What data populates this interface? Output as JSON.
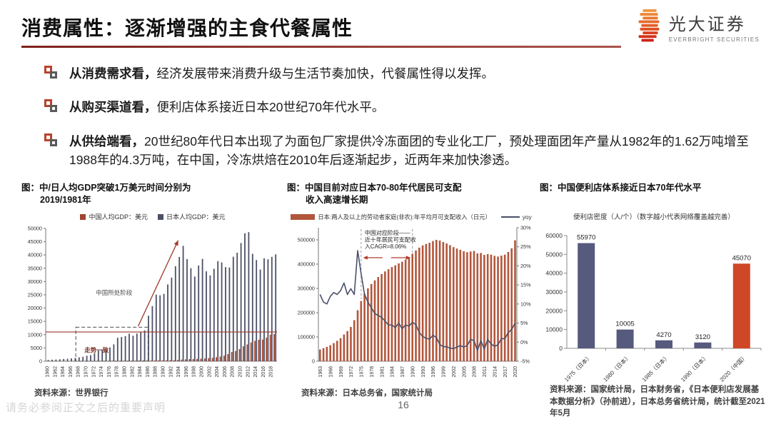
{
  "header": {
    "title": "消费属性：逐渐增强的主食代餐属性",
    "brand_cn": "光大证券",
    "brand_en": "EVERBRIGHT SECURITIES"
  },
  "bullets": [
    {
      "lead": "从消费需求看，",
      "text": "经济发展带来消费升级与生活节奏加快，代餐属性得以发挥。"
    },
    {
      "lead": "从购买渠道看，",
      "text": "便利店体系接近日本20世纪70年代水平。"
    },
    {
      "lead": "从供给端看，",
      "text": "20世纪80年代日本出现了为面包厂家提供冷冻面团的专业化工厂，预处理面团年产量从1982年的1.62万吨增至1988年的4.3万吨，在中国，冷冻烘焙在2010年后逐渐起步，近两年来加快渗透。"
    }
  ],
  "sources": {
    "chart1": "资料来源：世界银行",
    "chart2": "资料来源：日本总务省，国家统计局",
    "chart3": "资料来源：国家统计局，日本财务省，《日本便利店发展基本数据分析》（孙前进），日本总务省统计局，统计截至2021年5月"
  },
  "footer": {
    "page_number": "16",
    "disclaimer": "请务必参阅正文之后的重要声明"
  },
  "chart_data": [
    {
      "type": "bar",
      "title": "图：中/日人均GDP突破1万美元时间分别为\n2019/1981年",
      "x_first_year": 1960,
      "x_tick_labels": [
        "1960",
        "1962",
        "1964",
        "1966",
        "1968",
        "1970",
        "1972",
        "1974",
        "1976",
        "1978",
        "1980",
        "1982",
        "1984",
        "1986",
        "1988",
        "1990",
        "1992",
        "1994",
        "1996",
        "1998",
        "2000",
        "2002",
        "2004",
        "2006",
        "2008",
        "2010",
        "2012",
        "2014",
        "2016",
        "2018"
      ],
      "ylim": [
        0,
        50000
      ],
      "ytick_step": 5000,
      "legend": [
        {
          "label": "中国人均GDP：美元",
          "color": "#a1442f"
        },
        {
          "label": "日本人均GDP：美元",
          "color": "#4c5065"
        }
      ],
      "series": [
        {
          "name": "中国人均GDP：美元",
          "color": "#a1442f",
          "values": [
            90,
            76,
            71,
            74,
            85,
            98,
            104,
            97,
            91,
            100,
            113,
            119,
            132,
            157,
            160,
            178,
            165,
            185,
            156,
            184,
            195,
            197,
            203,
            225,
            250,
            294,
            282,
            252,
            284,
            311,
            318,
            333,
            366,
            377,
            473,
            610,
            709,
            782,
            829,
            873,
            959,
            1053,
            1149,
            1289,
            1509,
            1753,
            2099,
            2694,
            3468,
            3832,
            4550,
            5618,
            6317,
            7051,
            7679,
            8067,
            8148,
            8879,
            9977,
            10217
          ]
        },
        {
          "name": "日本人均GDP：美元",
          "color": "#4c5065",
          "values": [
            479,
            564,
            634,
            718,
            836,
            920,
            1058,
            1229,
            1451,
            1669,
            2056,
            2272,
            2967,
            3998,
            4353,
            4659,
            5197,
            6335,
            8821,
            9105,
            9465,
            10361,
            9578,
            10425,
            10984,
            11585,
            17112,
            20745,
            25059,
            24813,
            25371,
            28915,
            31465,
            35766,
            39269,
            43440,
            38437,
            35022,
            31902,
            36027,
            38532,
            33846,
            32289,
            34808,
            37688,
            37217,
            35433,
            35275,
            39339,
            40855,
            44508,
            48168,
            48603,
            40454,
            38109,
            34524,
            38762,
            38387,
            39290,
            40247
          ]
        }
      ],
      "reference_line": {
        "value": 11000,
        "color": "#9e372b"
      },
      "annotations": {
        "box_label": "走势一致",
        "box_year_range": [
          1968,
          1986
        ],
        "box_value_top": 12800,
        "arrow_label": "中国所处阶段",
        "arrow_from": {
          "year": 1984,
          "value": 13200
        },
        "arrow_to": {
          "year": 1994,
          "value": 45500
        }
      }
    },
    {
      "type": "bar+line",
      "title": "图：中国目前对应日本70-80年代居民可支配\n收入高速增长期",
      "x_first_year": 1963,
      "x_tick_labels": [
        "1963",
        "1966",
        "1969",
        "1972",
        "1975",
        "1978",
        "1981",
        "1984",
        "1987",
        "1990",
        "1993",
        "1996",
        "1999",
        "2002",
        "2005",
        "2008",
        "2011",
        "2014",
        "2017",
        "2020"
      ],
      "ylim_left": [
        0,
        550000
      ],
      "ytick_step_left": 100000,
      "ytick_max_left": 500000,
      "ylim_right": [
        -5,
        30
      ],
      "ytick_step_right": 5,
      "legend": [
        {
          "label": "日本:两人及以上的劳动者家庭(非农):年平均月可支配收入（日元）",
          "color": "#b2563c",
          "shape": "rect"
        },
        {
          "label": "yoy",
          "color": "#495069",
          "shape": "line"
        }
      ],
      "bar_series": {
        "name": "日本:两人及以上的劳动者家庭(非农):年平均月可支配收入（日元）",
        "color": "#b2563c",
        "values": [
          48000,
          53500,
          59000,
          66000,
          74500,
          84000,
          95000,
          110000,
          124000,
          141000,
          169000,
          210000,
          248000,
          278000,
          300000,
          318000,
          333000,
          347000,
          359000,
          370000,
          379000,
          388000,
          395000,
          403000,
          410000,
          419000,
          429000,
          443000,
          456000,
          468000,
          477000,
          483000,
          488000,
          495000,
          500000,
          497000,
          491000,
          485000,
          478000,
          470000,
          464000,
          459000,
          453000,
          449000,
          452000,
          454000,
          444000,
          446000,
          438000,
          441000,
          439000,
          434000,
          431000,
          435000,
          439000,
          450000,
          465000,
          498000
        ]
      },
      "line_series": {
        "name": "yoy",
        "color": "#495069",
        "values": [
          12.5,
          10.5,
          10,
          12,
          13,
          12.5,
          13.5,
          15.5,
          12.5,
          14,
          12.5,
          24,
          18,
          12.5,
          10.5,
          9,
          7.5,
          7,
          6.5,
          5.5,
          4.5,
          4.5,
          3.8,
          5,
          3.5,
          4.5,
          4.2,
          5.2,
          4.6,
          2.5,
          1.5,
          1,
          0.8,
          1.8,
          1.2,
          -0.6,
          -1.2,
          -1.2,
          -1.6,
          -1.7,
          -1.3,
          -0.9,
          -1.3,
          -0.9,
          0.7,
          0.4,
          -2.2,
          0.4,
          -1.8,
          0.7,
          -0.5,
          -1.1,
          -0.7,
          0.9,
          0.9,
          2.5,
          3.3,
          5
        ]
      },
      "annotation": {
        "lines": [
          "中国对应阶段——",
          "近十年居民可支配收",
          "入CAGR=8.06%"
        ],
        "span_years": [
          1975,
          1990
        ],
        "arrow_color": "#b03a2a"
      }
    },
    {
      "type": "bar",
      "title": "图：中国便利店体系接近日本70年代水平",
      "subtitle": "便利店密度（人/个）（数字越小代表网络覆盖越完善）",
      "categories": [
        "1975（日本）",
        "1980（日本）",
        "1985（日本）",
        "1990（日本）",
        "2020（中国）"
      ],
      "values": [
        55970,
        10005,
        4270,
        3120,
        45070
      ],
      "bar_colors": [
        "#565a7d",
        "#565a7d",
        "#565a7d",
        "#565a7d",
        "#cf4727"
      ],
      "ylim": [
        0,
        60000
      ],
      "ytick_step": 10000
    }
  ],
  "logo_stripe_colors": [
    "#f0953f",
    "#ee8838",
    "#ea7a32",
    "#e66c2c",
    "#e25e27",
    "#dd4f22",
    "#d8421e",
    "#d2321a",
    "#cc2317"
  ]
}
